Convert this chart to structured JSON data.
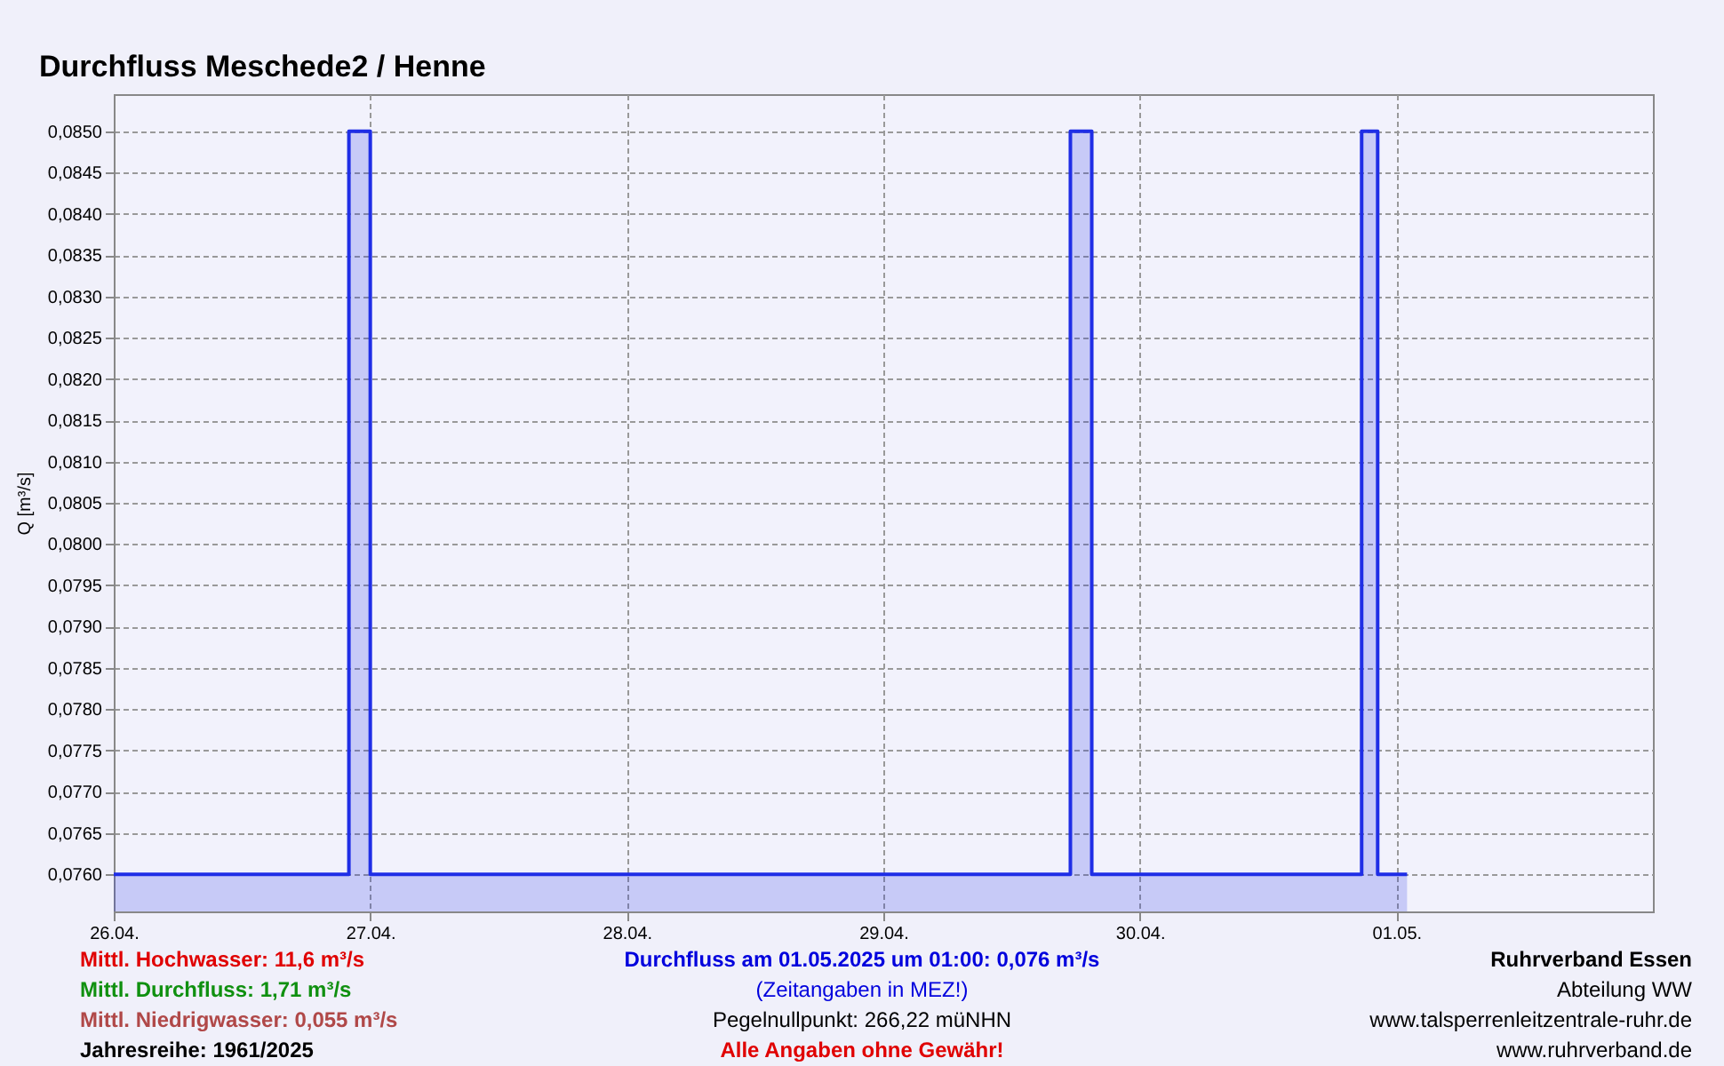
{
  "chart_data": {
    "type": "area",
    "title": "Durchfluss Meschede2 / Henne",
    "ylabel": "Q [m³/s]",
    "x": [
      "2025-04-26T00:00",
      "2025-04-26T22:00",
      "2025-04-26T22:00",
      "2025-04-27T00:00",
      "2025-04-27T00:00",
      "2025-04-29T17:30",
      "2025-04-29T17:30",
      "2025-04-29T19:30",
      "2025-04-29T19:30",
      "2025-04-30T20:45",
      "2025-04-30T20:45",
      "2025-04-30T22:15",
      "2025-04-30T22:15",
      "2025-05-01T01:00"
    ],
    "series": [
      {
        "color": "#1f2ee6",
        "values": [
          0.076,
          0.076,
          0.085,
          0.085,
          0.076,
          0.076,
          0.085,
          0.085,
          0.076,
          0.076,
          0.085,
          0.085,
          0.076,
          0.076
        ]
      }
    ],
    "xlim": [
      "2025-04-26T00:00",
      "2025-05-02T00:00"
    ],
    "xticks": [
      {
        "value": "2025-04-26T00:00",
        "label": "26.04."
      },
      {
        "value": "2025-04-27T00:00",
        "label": "27.04."
      },
      {
        "value": "2025-04-28T00:00",
        "label": "28.04."
      },
      {
        "value": "2025-04-29T00:00",
        "label": "29.04."
      },
      {
        "value": "2025-04-30T00:00",
        "label": "30.04."
      },
      {
        "value": "2025-05-01T00:00",
        "label": "01.05."
      }
    ],
    "ylim": [
      0.07555,
      0.08545
    ],
    "yticks": [
      {
        "value": 0.076,
        "label": "0,0760"
      },
      {
        "value": 0.0765,
        "label": "0,0765"
      },
      {
        "value": 0.077,
        "label": "0,0770"
      },
      {
        "value": 0.0775,
        "label": "0,0775"
      },
      {
        "value": 0.078,
        "label": "0,0780"
      },
      {
        "value": 0.0785,
        "label": "0,0785"
      },
      {
        "value": 0.079,
        "label": "0,0790"
      },
      {
        "value": 0.0795,
        "label": "0,0795"
      },
      {
        "value": 0.08,
        "label": "0,0800"
      },
      {
        "value": 0.0805,
        "label": "0,0805"
      },
      {
        "value": 0.081,
        "label": "0,0810"
      },
      {
        "value": 0.0815,
        "label": "0,0815"
      },
      {
        "value": 0.082,
        "label": "0,0820"
      },
      {
        "value": 0.0825,
        "label": "0,0825"
      },
      {
        "value": 0.083,
        "label": "0,0830"
      },
      {
        "value": 0.0835,
        "label": "0,0835"
      },
      {
        "value": 0.084,
        "label": "0,0840"
      },
      {
        "value": 0.0845,
        "label": "0,0845"
      },
      {
        "value": 0.085,
        "label": "0,0850"
      }
    ],
    "grid": true,
    "annotations": [
      "Mittl. Hochwasser: 11,6 m³/s",
      "Mittl. Durchfluss: 1,71 m³/s",
      "Mittl. Niedrigwasser: 0,055 m³/s",
      "Jahresreihe: 1961/2025",
      "Durchfluss am 01.05.2025 um 01:00: 0,076 m³/s",
      "(Zeitangaben in MEZ!)",
      "Pegelnullpunkt: 266,22 müNHN",
      "Alle Angaben ohne Gewähr!",
      "Ruhrverband Essen",
      "Abteilung WW",
      "www.talsperrenleitzentrale-ruhr.de",
      "www.ruhrverband.de"
    ]
  }
}
